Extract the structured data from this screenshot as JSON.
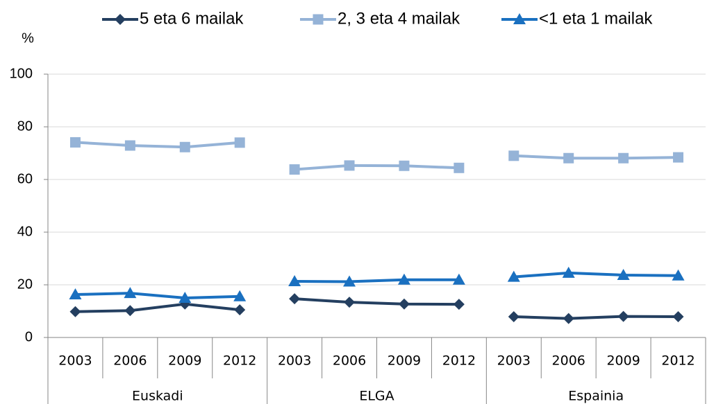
{
  "chart_data": {
    "type": "line",
    "y_label": "%",
    "groups": [
      {
        "name": "Euskadi",
        "categories": [
          "2003",
          "2006",
          "2009",
          "2012"
        ]
      },
      {
        "name": "ELGA",
        "categories": [
          "2003",
          "2006",
          "2009",
          "2012"
        ]
      },
      {
        "name": "Espainia",
        "categories": [
          "2003",
          "2006",
          "2009",
          "2012"
        ]
      }
    ],
    "series": [
      {
        "name": "5 eta 6 mailak",
        "color": "#243f60",
        "marker": "diamond",
        "values": [
          9.8,
          10.2,
          12.7,
          10.5,
          14.7,
          13.4,
          12.7,
          12.6,
          7.9,
          7.2,
          8.0,
          7.9
        ]
      },
      {
        "name": "2, 3 eta 4 mailak",
        "color": "#95b3d7",
        "marker": "square",
        "values": [
          74.1,
          72.9,
          72.3,
          74.0,
          63.8,
          65.3,
          65.2,
          64.4,
          69.0,
          68.1,
          68.1,
          68.4
        ]
      },
      {
        "name": "<1 eta 1 mailak",
        "color": "#1a70c0",
        "marker": "triangle",
        "values": [
          16.3,
          16.8,
          15.0,
          15.6,
          21.3,
          21.2,
          21.9,
          21.9,
          23.0,
          24.5,
          23.7,
          23.5
        ]
      }
    ],
    "ylim": [
      0,
      100
    ],
    "yticks": [
      0,
      20,
      40,
      60,
      80,
      100
    ],
    "grid": true
  }
}
